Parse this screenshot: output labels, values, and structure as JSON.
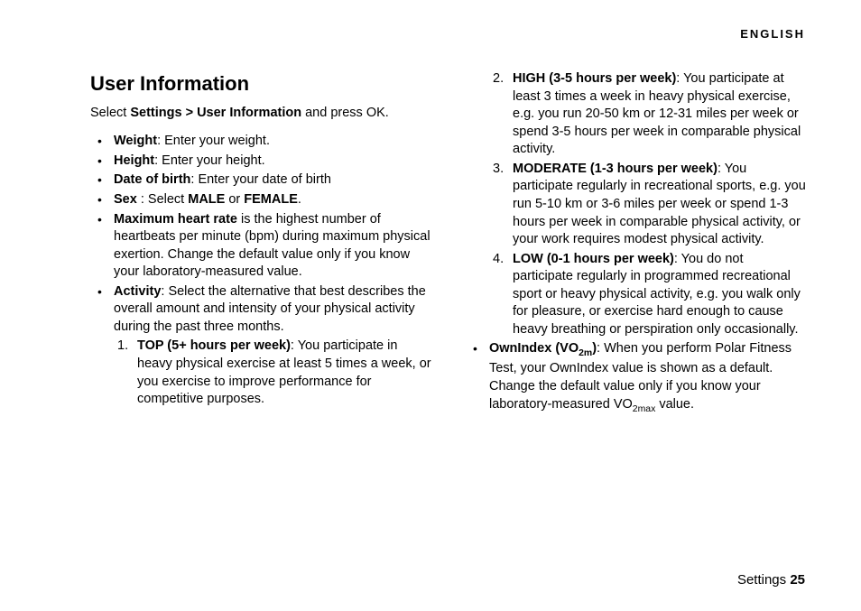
{
  "header": {
    "language": "ENGLISH"
  },
  "section": {
    "title": "User Information",
    "intro_pre": "Select ",
    "intro_path": "Settings > User Information",
    "intro_post": " and press OK."
  },
  "bullets": {
    "weight": {
      "label": "Weight",
      "text": ": Enter your weight."
    },
    "height": {
      "label": "Height",
      "text": ": Enter your height."
    },
    "dob": {
      "label": "Date of birth",
      "text": ": Enter your date of birth"
    },
    "sex": {
      "label": "Sex",
      "pre": " : Select ",
      "male": "MALE",
      "mid": " or ",
      "female": "FEMALE",
      "post": "."
    },
    "mhr": {
      "label": "Maximum heart rate",
      "text": " is the highest number of heartbeats per minute (bpm) during maximum physical exertion. Change the default value only if you know your laboratory-measured value."
    },
    "activity": {
      "label": "Activity",
      "text": ": Select the alternative that best describes the overall amount and intensity of your physical activity during the past three months."
    },
    "ownindex": {
      "label": "OwnIndex (VO",
      "sub1": "2m",
      "label2": ")",
      "text_pre": ": When you perform Polar Fitness Test, your OwnIndex value is shown as a default. Change the default value only if you know your laboratory-measured VO",
      "sub2": "2max",
      "text_post": " value."
    }
  },
  "activity_levels": {
    "n1": "1.",
    "n2": "2.",
    "n3": "3.",
    "n4": "4.",
    "top": {
      "label": "TOP (5+ hours per week)",
      "text": ": You participate in heavy physical exercise at least 5 times a week, or you exercise to improve performance for competitive purposes."
    },
    "high": {
      "label": "HIGH (3-5 hours per week)",
      "text": ": You participate at least 3 times a week in heavy physical exercise, e.g. you run 20-50 km or 12-31 miles per week or spend 3-5 hours per week in comparable physical activity."
    },
    "moderate": {
      "label": "MODERATE (1-3 hours per week)",
      "text": ": You participate regularly in recreational sports, e.g. you run 5-10 km or 3-6 miles per week or spend 1-3 hours per week in comparable physical activity, or your work requires modest physical activity."
    },
    "low": {
      "label": "LOW (0-1 hours per week)",
      "text": ": You do not participate regularly in programmed recreational sport or heavy physical activity, e.g. you walk only for pleasure, or exercise hard enough to cause heavy breathing or perspiration only occasionally."
    }
  },
  "footer": {
    "section": "Settings ",
    "page": "25"
  }
}
